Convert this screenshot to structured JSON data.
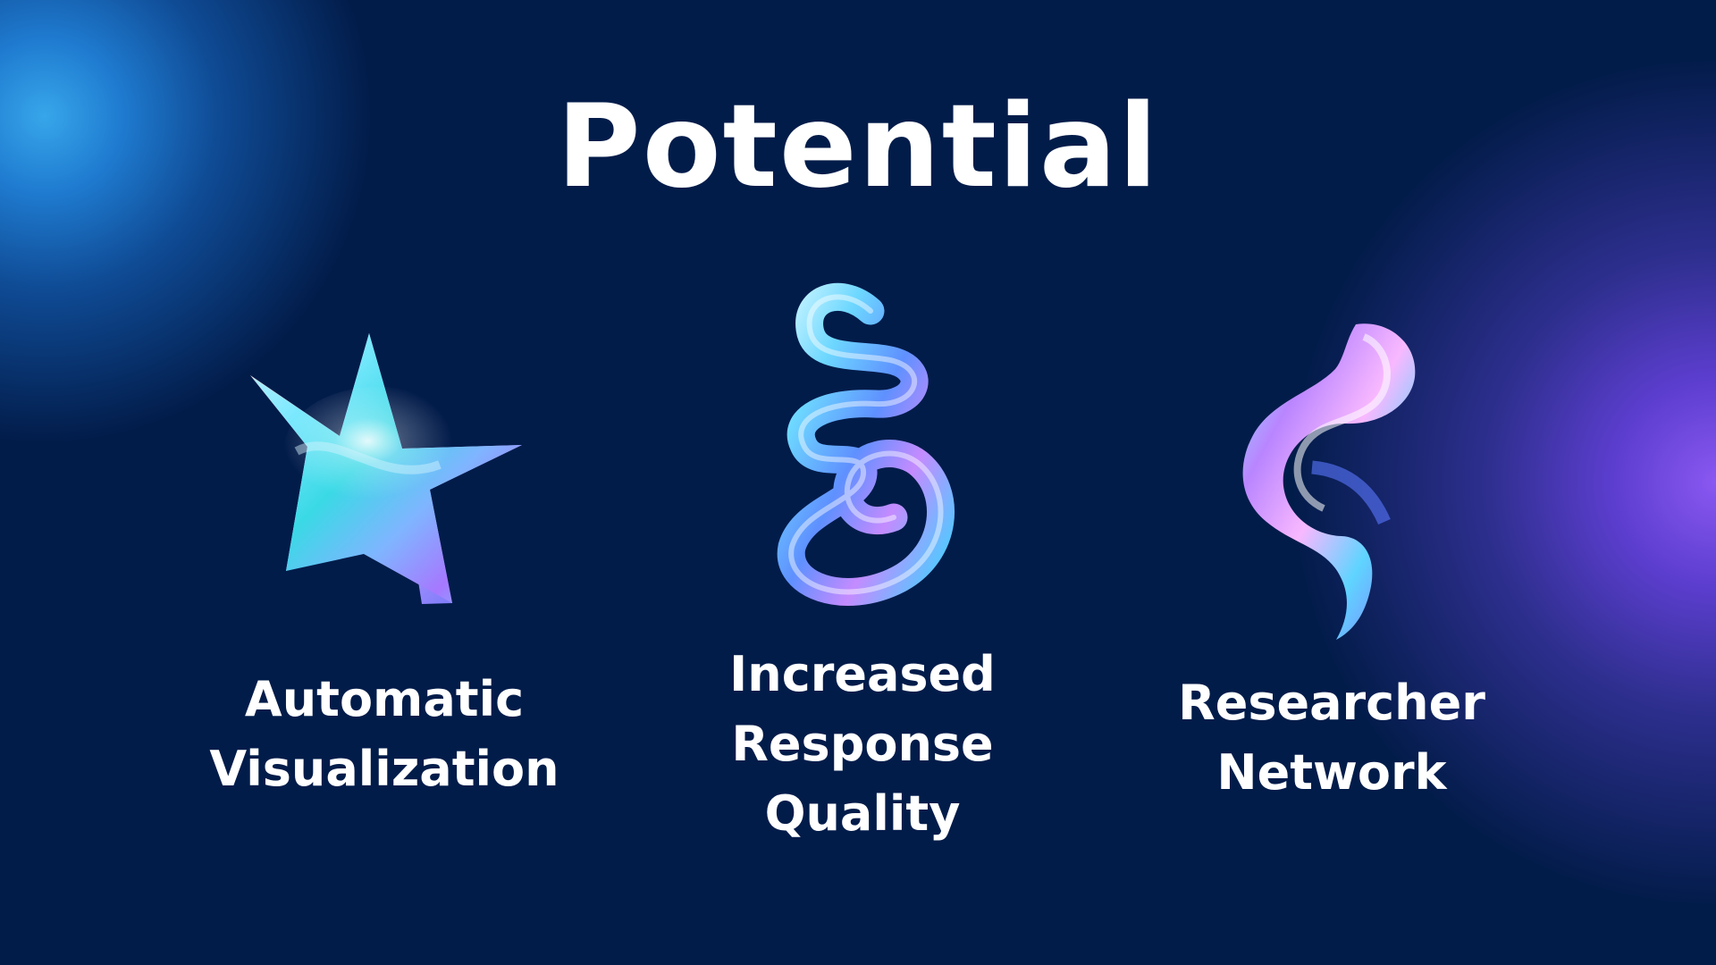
{
  "slide": {
    "title": "Potential",
    "colors": {
      "background": "#021c4a",
      "text": "#ffffff",
      "blue_glow": "#37a6ea",
      "purple_glow": "#8a58f2"
    },
    "items": [
      {
        "icon": "holographic-star-icon",
        "lines": [
          "Automatic",
          "Visualization"
        ]
      },
      {
        "icon": "holographic-swirl-icon",
        "lines": [
          "Increased",
          "Response",
          "Quality"
        ]
      },
      {
        "icon": "holographic-ribbon-icon",
        "lines": [
          "Researcher",
          "Network"
        ]
      }
    ]
  }
}
